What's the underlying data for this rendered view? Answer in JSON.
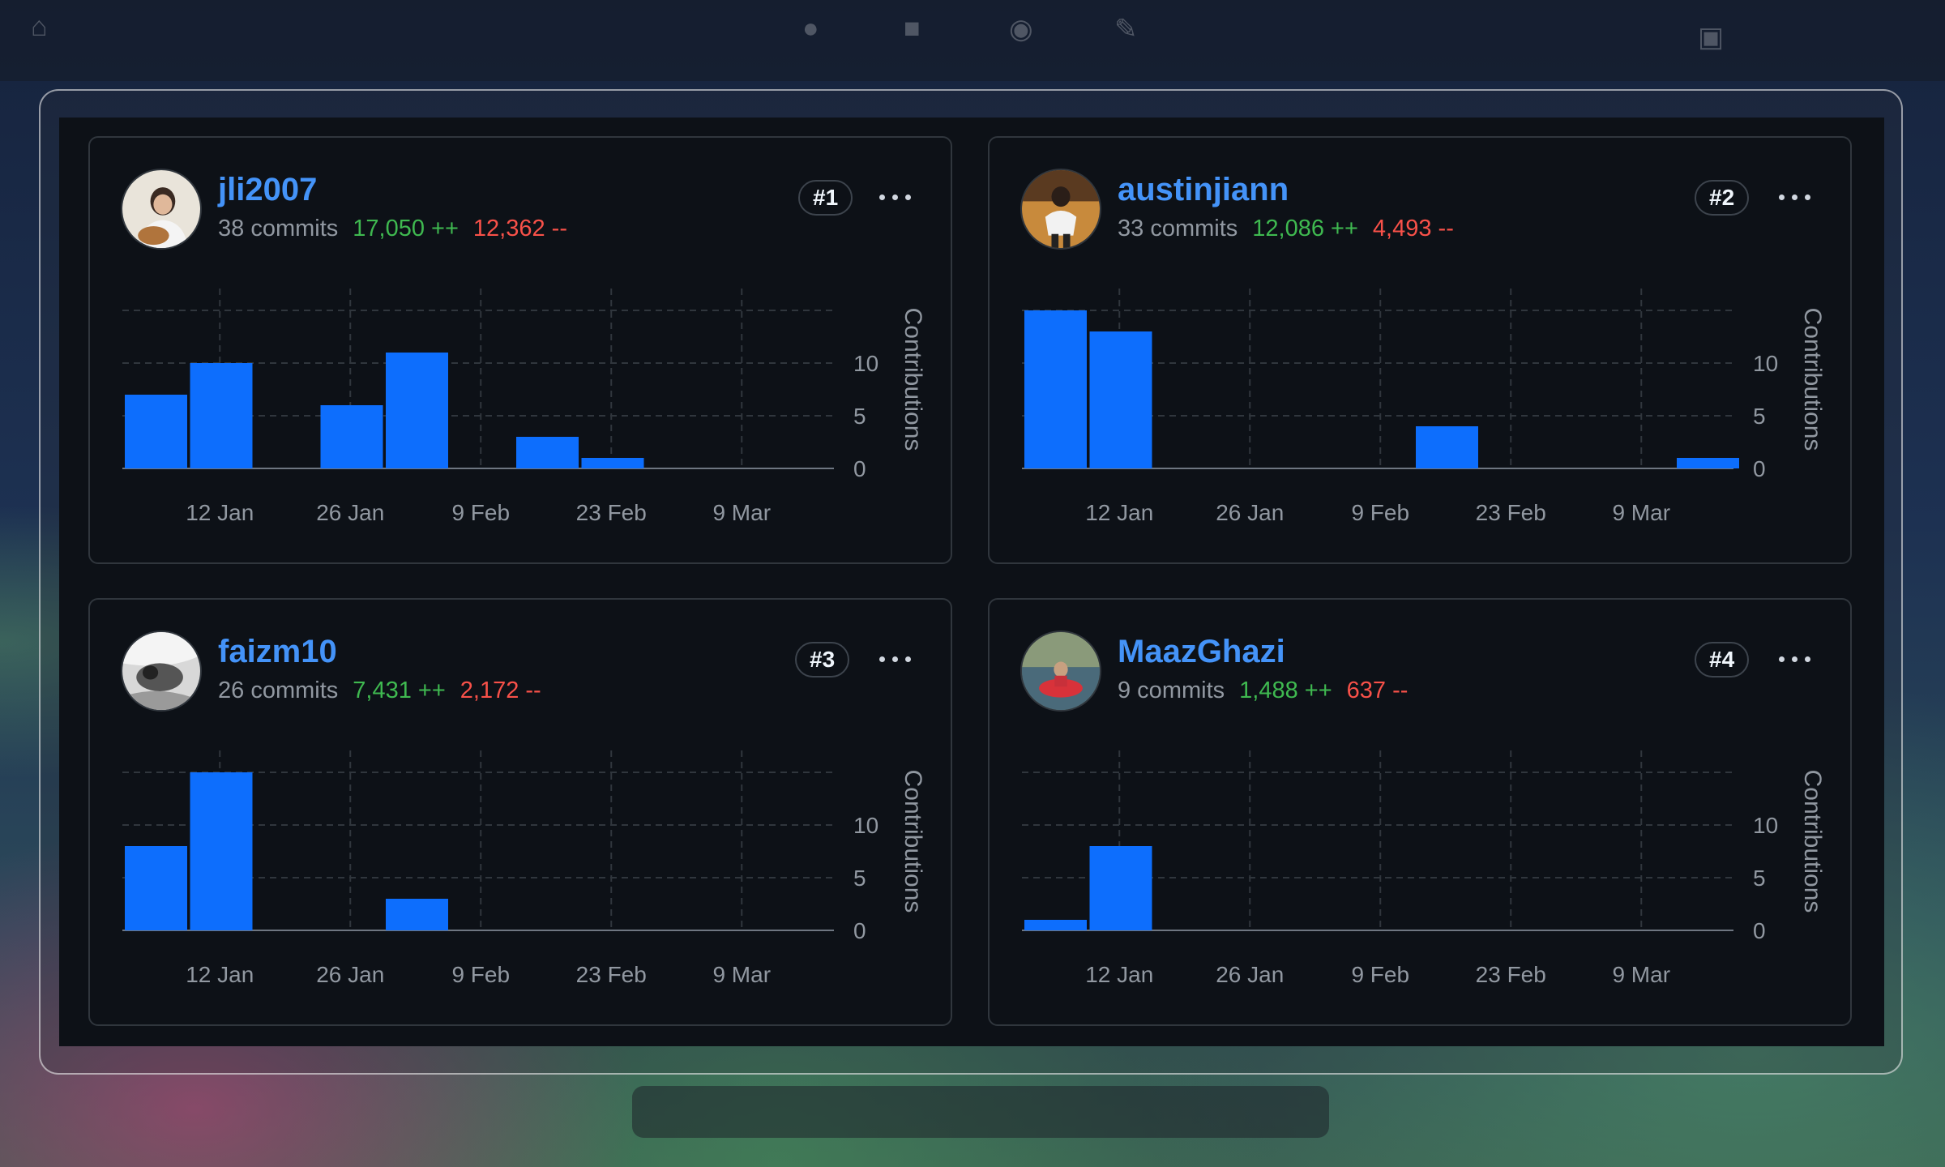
{
  "colors": {
    "bar": "#0d6efd",
    "link": "#4493f8",
    "additions": "#3fb950",
    "deletions": "#f85149",
    "muted": "#9198a1",
    "border": "#30363d",
    "card_bg": "#0d1117"
  },
  "toolbar": {
    "menu_icon": "more-horizontal-icon"
  },
  "contributors": [
    {
      "username": "jli2007",
      "commits": "38 commits",
      "additions": "17,050 ++",
      "deletions": "12,362 --",
      "rank": "#1",
      "avatar_icon": "user-avatar"
    },
    {
      "username": "austinjiann",
      "commits": "33 commits",
      "additions": "12,086 ++",
      "deletions": "4,493 --",
      "rank": "#2",
      "avatar_icon": "user-avatar"
    },
    {
      "username": "faizm10",
      "commits": "26 commits",
      "additions": "7,431 ++",
      "deletions": "2,172 --",
      "rank": "#3",
      "avatar_icon": "user-avatar"
    },
    {
      "username": "MaazGhazi",
      "commits": "9 commits",
      "additions": "1,488 ++",
      "deletions": "637 --",
      "rank": "#4",
      "avatar_icon": "user-avatar"
    }
  ],
  "chart_data": [
    {
      "type": "bar",
      "x": [
        "5 Jan",
        "12 Jan",
        "19 Jan",
        "26 Jan",
        "2 Feb",
        "9 Feb",
        "16 Feb",
        "23 Feb",
        "2 Mar",
        "9 Mar",
        "16 Mar"
      ],
      "x_tick_labels": [
        "12 Jan",
        "26 Jan",
        "9 Feb",
        "23 Feb",
        "9 Mar"
      ],
      "values": [
        7,
        10,
        0,
        6,
        11,
        0,
        3,
        1,
        0,
        0,
        0
      ],
      "ylabel": "Contributions",
      "y_ticks": [
        0,
        5,
        10
      ],
      "ylim": [
        0,
        17
      ],
      "grid": true
    },
    {
      "type": "bar",
      "x": [
        "5 Jan",
        "12 Jan",
        "19 Jan",
        "26 Jan",
        "2 Feb",
        "9 Feb",
        "16 Feb",
        "23 Feb",
        "2 Mar",
        "9 Mar",
        "16 Mar"
      ],
      "x_tick_labels": [
        "12 Jan",
        "26 Jan",
        "9 Feb",
        "23 Feb",
        "9 Mar"
      ],
      "values": [
        15,
        13,
        0,
        0,
        0,
        0,
        4,
        0,
        0,
        0,
        1
      ],
      "ylabel": "Contributions",
      "y_ticks": [
        0,
        5,
        10
      ],
      "ylim": [
        0,
        17
      ],
      "grid": true
    },
    {
      "type": "bar",
      "x": [
        "5 Jan",
        "12 Jan",
        "19 Jan",
        "26 Jan",
        "2 Feb",
        "9 Feb",
        "16 Feb",
        "23 Feb",
        "2 Mar",
        "9 Mar",
        "16 Mar"
      ],
      "x_tick_labels": [
        "12 Jan",
        "26 Jan",
        "9 Feb",
        "23 Feb",
        "9 Mar"
      ],
      "values": [
        8,
        15,
        0,
        0,
        3,
        0,
        0,
        0,
        0,
        0,
        0
      ],
      "ylabel": "Contributions",
      "y_ticks": [
        0,
        5,
        10
      ],
      "ylim": [
        0,
        17
      ],
      "grid": true
    },
    {
      "type": "bar",
      "x": [
        "5 Jan",
        "12 Jan",
        "19 Jan",
        "26 Jan",
        "2 Feb",
        "9 Feb",
        "16 Feb",
        "23 Feb",
        "2 Mar",
        "9 Mar",
        "16 Mar"
      ],
      "x_tick_labels": [
        "12 Jan",
        "26 Jan",
        "9 Feb",
        "23 Feb",
        "9 Mar"
      ],
      "values": [
        1,
        8,
        0,
        0,
        0,
        0,
        0,
        0,
        0,
        0,
        0
      ],
      "ylabel": "Contributions",
      "y_ticks": [
        0,
        5,
        10
      ],
      "ylim": [
        0,
        17
      ],
      "grid": true
    }
  ]
}
